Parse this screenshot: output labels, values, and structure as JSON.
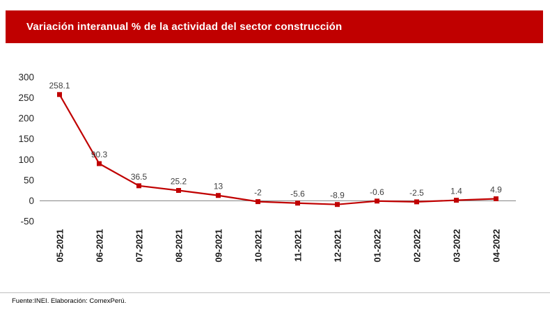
{
  "header": {
    "title": "Variación interanual % de la actividad del sector construcción",
    "bar_color": "#C00000"
  },
  "chart_data": {
    "type": "line",
    "title": "Variación interanual % de la actividad del sector construcción",
    "categories": [
      "05-2021",
      "06-2021",
      "07-2021",
      "08-2021",
      "09-2021",
      "10-2021",
      "11-2021",
      "12-2021",
      "01-2022",
      "02-2022",
      "03-2022",
      "04-2022"
    ],
    "values": [
      258.1,
      90.3,
      36.5,
      25.2,
      13,
      -2,
      -5.6,
      -8.9,
      -0.6,
      -2.5,
      1.4,
      4.9
    ],
    "labels": [
      "258.1",
      "90.3",
      "36.5",
      "25.2",
      "13",
      "-2",
      "-5.6",
      "-8.9",
      "-0.6",
      "-2.5",
      "1.4",
      "4.9"
    ],
    "xlabel": "",
    "ylabel": "",
    "ylim": [
      -50,
      300
    ],
    "yticks": [
      300,
      250,
      200,
      150,
      100,
      50,
      0,
      -50
    ],
    "series_color": "#C00000",
    "axis_color": "#808080",
    "marker": "square",
    "grid": false,
    "legend": "none"
  },
  "footer": {
    "source": "Fuente:INEI. Elaboración: ComexPerú."
  }
}
